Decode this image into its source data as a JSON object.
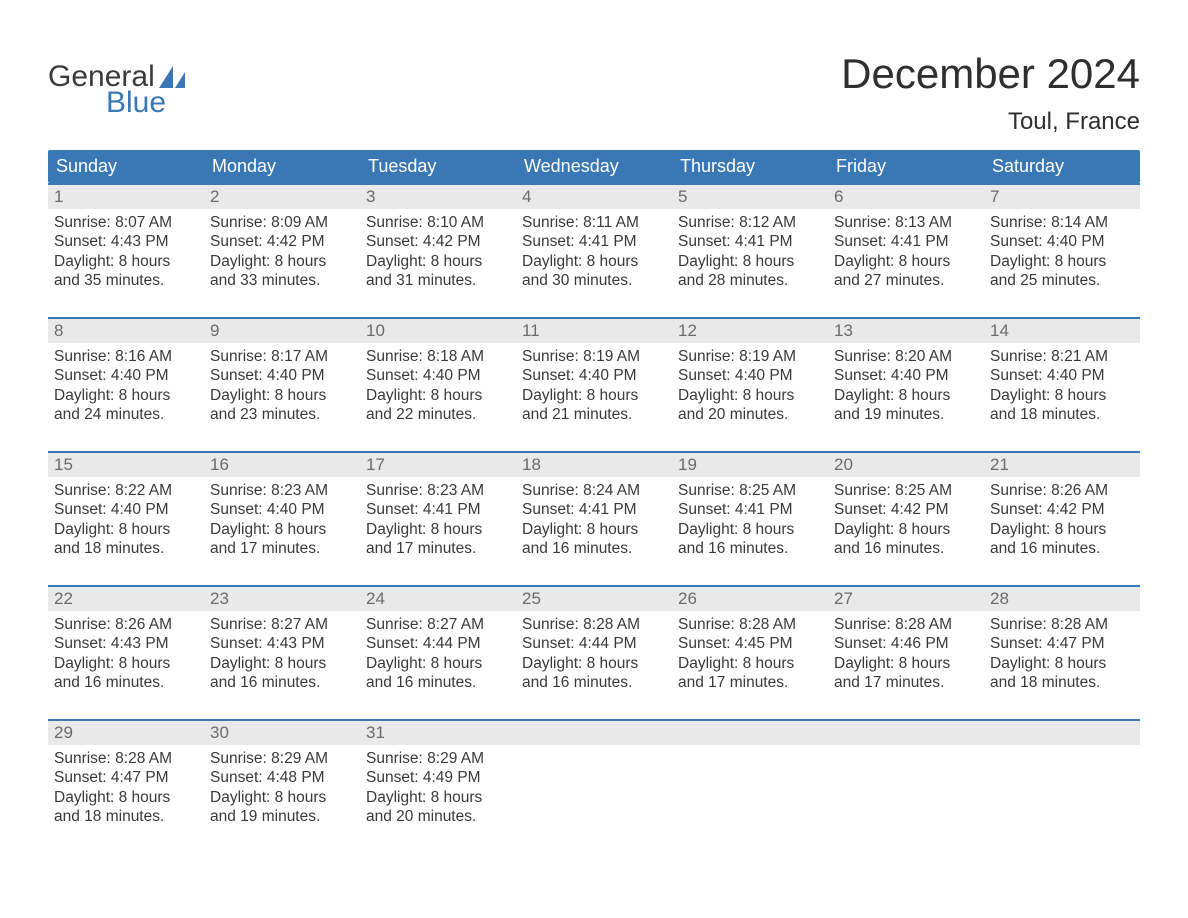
{
  "brand": {
    "word1": "General",
    "word2": "Blue",
    "accent": "#3a78b5"
  },
  "title": "December 2024",
  "location": "Toul, France",
  "colors": {
    "header_bg": "#3a78b5",
    "header_text": "#ffffff",
    "daynum_bg": "#e9e9e9",
    "daynum_text": "#6b6b6b",
    "body_text": "#3a3a3a",
    "week_divider": "#3a78b5",
    "page_bg": "#ffffff"
  },
  "day_labels": [
    "Sunday",
    "Monday",
    "Tuesday",
    "Wednesday",
    "Thursday",
    "Friday",
    "Saturday"
  ],
  "weeks": [
    [
      {
        "n": "1",
        "sr": "8:07 AM",
        "ss": "4:43 PM",
        "dl": "8 hours and 35 minutes."
      },
      {
        "n": "2",
        "sr": "8:09 AM",
        "ss": "4:42 PM",
        "dl": "8 hours and 33 minutes."
      },
      {
        "n": "3",
        "sr": "8:10 AM",
        "ss": "4:42 PM",
        "dl": "8 hours and 31 minutes."
      },
      {
        "n": "4",
        "sr": "8:11 AM",
        "ss": "4:41 PM",
        "dl": "8 hours and 30 minutes."
      },
      {
        "n": "5",
        "sr": "8:12 AM",
        "ss": "4:41 PM",
        "dl": "8 hours and 28 minutes."
      },
      {
        "n": "6",
        "sr": "8:13 AM",
        "ss": "4:41 PM",
        "dl": "8 hours and 27 minutes."
      },
      {
        "n": "7",
        "sr": "8:14 AM",
        "ss": "4:40 PM",
        "dl": "8 hours and 25 minutes."
      }
    ],
    [
      {
        "n": "8",
        "sr": "8:16 AM",
        "ss": "4:40 PM",
        "dl": "8 hours and 24 minutes."
      },
      {
        "n": "9",
        "sr": "8:17 AM",
        "ss": "4:40 PM",
        "dl": "8 hours and 23 minutes."
      },
      {
        "n": "10",
        "sr": "8:18 AM",
        "ss": "4:40 PM",
        "dl": "8 hours and 22 minutes."
      },
      {
        "n": "11",
        "sr": "8:19 AM",
        "ss": "4:40 PM",
        "dl": "8 hours and 21 minutes."
      },
      {
        "n": "12",
        "sr": "8:19 AM",
        "ss": "4:40 PM",
        "dl": "8 hours and 20 minutes."
      },
      {
        "n": "13",
        "sr": "8:20 AM",
        "ss": "4:40 PM",
        "dl": "8 hours and 19 minutes."
      },
      {
        "n": "14",
        "sr": "8:21 AM",
        "ss": "4:40 PM",
        "dl": "8 hours and 18 minutes."
      }
    ],
    [
      {
        "n": "15",
        "sr": "8:22 AM",
        "ss": "4:40 PM",
        "dl": "8 hours and 18 minutes."
      },
      {
        "n": "16",
        "sr": "8:23 AM",
        "ss": "4:40 PM",
        "dl": "8 hours and 17 minutes."
      },
      {
        "n": "17",
        "sr": "8:23 AM",
        "ss": "4:41 PM",
        "dl": "8 hours and 17 minutes."
      },
      {
        "n": "18",
        "sr": "8:24 AM",
        "ss": "4:41 PM",
        "dl": "8 hours and 16 minutes."
      },
      {
        "n": "19",
        "sr": "8:25 AM",
        "ss": "4:41 PM",
        "dl": "8 hours and 16 minutes."
      },
      {
        "n": "20",
        "sr": "8:25 AM",
        "ss": "4:42 PM",
        "dl": "8 hours and 16 minutes."
      },
      {
        "n": "21",
        "sr": "8:26 AM",
        "ss": "4:42 PM",
        "dl": "8 hours and 16 minutes."
      }
    ],
    [
      {
        "n": "22",
        "sr": "8:26 AM",
        "ss": "4:43 PM",
        "dl": "8 hours and 16 minutes."
      },
      {
        "n": "23",
        "sr": "8:27 AM",
        "ss": "4:43 PM",
        "dl": "8 hours and 16 minutes."
      },
      {
        "n": "24",
        "sr": "8:27 AM",
        "ss": "4:44 PM",
        "dl": "8 hours and 16 minutes."
      },
      {
        "n": "25",
        "sr": "8:28 AM",
        "ss": "4:44 PM",
        "dl": "8 hours and 16 minutes."
      },
      {
        "n": "26",
        "sr": "8:28 AM",
        "ss": "4:45 PM",
        "dl": "8 hours and 17 minutes."
      },
      {
        "n": "27",
        "sr": "8:28 AM",
        "ss": "4:46 PM",
        "dl": "8 hours and 17 minutes."
      },
      {
        "n": "28",
        "sr": "8:28 AM",
        "ss": "4:47 PM",
        "dl": "8 hours and 18 minutes."
      }
    ],
    [
      {
        "n": "29",
        "sr": "8:28 AM",
        "ss": "4:47 PM",
        "dl": "8 hours and 18 minutes."
      },
      {
        "n": "30",
        "sr": "8:29 AM",
        "ss": "4:48 PM",
        "dl": "8 hours and 19 minutes."
      },
      {
        "n": "31",
        "sr": "8:29 AM",
        "ss": "4:49 PM",
        "dl": "8 hours and 20 minutes."
      },
      null,
      null,
      null,
      null
    ]
  ],
  "labels": {
    "sunrise": "Sunrise:",
    "sunset": "Sunset:",
    "daylight": "Daylight:"
  }
}
